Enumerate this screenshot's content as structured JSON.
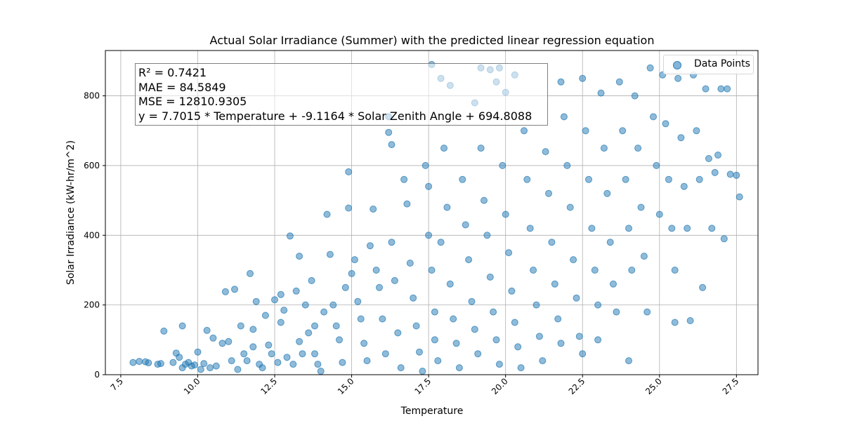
{
  "chart_data": {
    "type": "scatter",
    "title": "Actual Solar Irradiance (Summer) with the predicted linear regression equation",
    "xlabel": "Temperature",
    "ylabel": "Solar Irradiance (kW-hr/m^2)",
    "xlim": [
      7.0,
      28.2
    ],
    "ylim": [
      0,
      930
    ],
    "xticks": [
      "7.5",
      "10.0",
      "12.5",
      "15.0",
      "17.5",
      "20.0",
      "22.5",
      "25.0",
      "27.5"
    ],
    "yticks": [
      "0",
      "200",
      "400",
      "600",
      "800"
    ],
    "grid": true,
    "legend": {
      "position": "top-right",
      "entries": [
        "Data Points"
      ]
    },
    "annotation": {
      "r2": "R² = 0.7421",
      "mae": "MAE = 84.5849",
      "mse": "MSE = 12810.9305",
      "equation": "y = 7.7015 * Temperature + -9.1164 * Solar Zenith Angle + 694.8088"
    },
    "series": [
      {
        "name": "Data Points",
        "color": "#1f77b4",
        "points": [
          [
            7.9,
            35
          ],
          [
            8.1,
            38
          ],
          [
            8.3,
            37
          ],
          [
            8.4,
            34
          ],
          [
            8.7,
            30
          ],
          [
            8.8,
            32
          ],
          [
            8.9,
            125
          ],
          [
            9.2,
            35
          ],
          [
            9.3,
            62
          ],
          [
            9.4,
            50
          ],
          [
            9.5,
            140
          ],
          [
            9.5,
            20
          ],
          [
            9.6,
            30
          ],
          [
            9.7,
            35
          ],
          [
            9.8,
            25
          ],
          [
            9.9,
            28
          ],
          [
            10.0,
            65
          ],
          [
            10.1,
            15
          ],
          [
            10.2,
            32
          ],
          [
            10.3,
            127
          ],
          [
            10.4,
            20
          ],
          [
            10.5,
            105
          ],
          [
            10.6,
            25
          ],
          [
            10.8,
            90
          ],
          [
            10.9,
            238
          ],
          [
            11.0,
            95
          ],
          [
            11.1,
            40
          ],
          [
            11.2,
            245
          ],
          [
            11.3,
            15
          ],
          [
            11.4,
            140
          ],
          [
            11.5,
            60
          ],
          [
            11.6,
            40
          ],
          [
            11.7,
            290
          ],
          [
            11.8,
            130
          ],
          [
            11.8,
            80
          ],
          [
            11.9,
            210
          ],
          [
            12.0,
            30
          ],
          [
            12.1,
            20
          ],
          [
            12.2,
            170
          ],
          [
            12.3,
            85
          ],
          [
            12.4,
            60
          ],
          [
            12.5,
            215
          ],
          [
            12.6,
            35
          ],
          [
            12.7,
            230
          ],
          [
            12.7,
            150
          ],
          [
            12.8,
            185
          ],
          [
            12.9,
            50
          ],
          [
            13.0,
            398
          ],
          [
            13.1,
            30
          ],
          [
            13.2,
            240
          ],
          [
            13.3,
            340
          ],
          [
            13.3,
            95
          ],
          [
            13.4,
            60
          ],
          [
            13.5,
            200
          ],
          [
            13.6,
            120
          ],
          [
            13.7,
            270
          ],
          [
            13.8,
            140
          ],
          [
            13.8,
            60
          ],
          [
            13.9,
            30
          ],
          [
            14.0,
            10
          ],
          [
            14.1,
            180
          ],
          [
            14.2,
            460
          ],
          [
            14.3,
            345
          ],
          [
            14.4,
            200
          ],
          [
            14.5,
            140
          ],
          [
            14.6,
            100
          ],
          [
            14.7,
            35
          ],
          [
            14.8,
            250
          ],
          [
            14.9,
            582
          ],
          [
            14.9,
            478
          ],
          [
            15.0,
            290
          ],
          [
            15.1,
            330
          ],
          [
            15.2,
            210
          ],
          [
            15.3,
            160
          ],
          [
            15.4,
            90
          ],
          [
            15.5,
            40
          ],
          [
            15.6,
            370
          ],
          [
            15.7,
            475
          ],
          [
            15.8,
            300
          ],
          [
            15.9,
            250
          ],
          [
            16.0,
            160
          ],
          [
            16.1,
            60
          ],
          [
            16.2,
            740
          ],
          [
            16.2,
            695
          ],
          [
            16.3,
            660
          ],
          [
            16.3,
            380
          ],
          [
            16.4,
            270
          ],
          [
            16.5,
            120
          ],
          [
            16.6,
            20
          ],
          [
            16.7,
            560
          ],
          [
            16.8,
            490
          ],
          [
            16.9,
            320
          ],
          [
            17.0,
            220
          ],
          [
            17.1,
            140
          ],
          [
            17.2,
            65
          ],
          [
            17.3,
            10
          ],
          [
            17.4,
            600
          ],
          [
            17.5,
            540
          ],
          [
            17.5,
            400
          ],
          [
            17.6,
            300
          ],
          [
            17.7,
            180
          ],
          [
            17.7,
            100
          ],
          [
            17.8,
            40
          ],
          [
            17.9,
            380
          ],
          [
            18.0,
            650
          ],
          [
            18.1,
            480
          ],
          [
            18.2,
            260
          ],
          [
            18.3,
            160
          ],
          [
            18.4,
            90
          ],
          [
            18.5,
            20
          ],
          [
            18.6,
            560
          ],
          [
            18.7,
            430
          ],
          [
            18.8,
            330
          ],
          [
            18.9,
            210
          ],
          [
            19.0,
            130
          ],
          [
            19.1,
            60
          ],
          [
            19.2,
            650
          ],
          [
            19.3,
            500
          ],
          [
            19.4,
            400
          ],
          [
            19.5,
            280
          ],
          [
            19.6,
            180
          ],
          [
            19.7,
            100
          ],
          [
            19.8,
            30
          ],
          [
            19.9,
            600
          ],
          [
            20.0,
            460
          ],
          [
            20.1,
            350
          ],
          [
            20.2,
            240
          ],
          [
            20.3,
            150
          ],
          [
            20.4,
            80
          ],
          [
            20.5,
            20
          ],
          [
            20.6,
            700
          ],
          [
            20.7,
            560
          ],
          [
            20.8,
            420
          ],
          [
            20.9,
            300
          ],
          [
            21.0,
            200
          ],
          [
            21.1,
            110
          ],
          [
            21.2,
            40
          ],
          [
            21.3,
            640
          ],
          [
            21.4,
            520
          ],
          [
            21.5,
            380
          ],
          [
            21.6,
            260
          ],
          [
            21.7,
            160
          ],
          [
            21.8,
            840
          ],
          [
            21.8,
            90
          ],
          [
            21.9,
            740
          ],
          [
            22.0,
            600
          ],
          [
            22.1,
            480
          ],
          [
            22.2,
            330
          ],
          [
            22.3,
            220
          ],
          [
            22.4,
            110
          ],
          [
            22.5,
            60
          ],
          [
            22.5,
            850
          ],
          [
            22.6,
            700
          ],
          [
            22.7,
            560
          ],
          [
            22.8,
            420
          ],
          [
            22.9,
            300
          ],
          [
            23.0,
            200
          ],
          [
            23.0,
            100
          ],
          [
            23.1,
            808
          ],
          [
            23.2,
            650
          ],
          [
            23.3,
            520
          ],
          [
            23.4,
            380
          ],
          [
            23.5,
            260
          ],
          [
            23.6,
            180
          ],
          [
            23.7,
            840
          ],
          [
            23.8,
            700
          ],
          [
            23.9,
            560
          ],
          [
            24.0,
            420
          ],
          [
            24.0,
            40
          ],
          [
            24.1,
            300
          ],
          [
            24.2,
            800
          ],
          [
            24.3,
            650
          ],
          [
            24.4,
            480
          ],
          [
            24.5,
            340
          ],
          [
            24.6,
            180
          ],
          [
            24.7,
            880
          ],
          [
            24.8,
            740
          ],
          [
            24.9,
            600
          ],
          [
            25.0,
            460
          ],
          [
            25.1,
            860
          ],
          [
            25.2,
            720
          ],
          [
            25.3,
            560
          ],
          [
            25.4,
            420
          ],
          [
            25.5,
            300
          ],
          [
            25.5,
            150
          ],
          [
            25.6,
            850
          ],
          [
            25.7,
            680
          ],
          [
            25.8,
            540
          ],
          [
            25.9,
            420
          ],
          [
            26.0,
            155
          ],
          [
            26.1,
            860
          ],
          [
            26.2,
            700
          ],
          [
            26.3,
            560
          ],
          [
            26.4,
            250
          ],
          [
            26.5,
            820
          ],
          [
            26.6,
            620
          ],
          [
            26.7,
            420
          ],
          [
            26.8,
            580
          ],
          [
            26.9,
            630
          ],
          [
            27.0,
            820
          ],
          [
            27.1,
            390
          ],
          [
            27.2,
            820
          ],
          [
            27.3,
            575
          ],
          [
            27.5,
            572
          ],
          [
            27.6,
            510
          ],
          [
            19.2,
            880
          ],
          [
            19.5,
            875
          ],
          [
            19.8,
            880
          ],
          [
            17.9,
            850
          ],
          [
            18.2,
            830
          ],
          [
            19.0,
            780
          ],
          [
            20.0,
            810
          ],
          [
            20.3,
            860
          ],
          [
            19.7,
            840
          ],
          [
            17.6,
            890
          ]
        ]
      }
    ]
  }
}
